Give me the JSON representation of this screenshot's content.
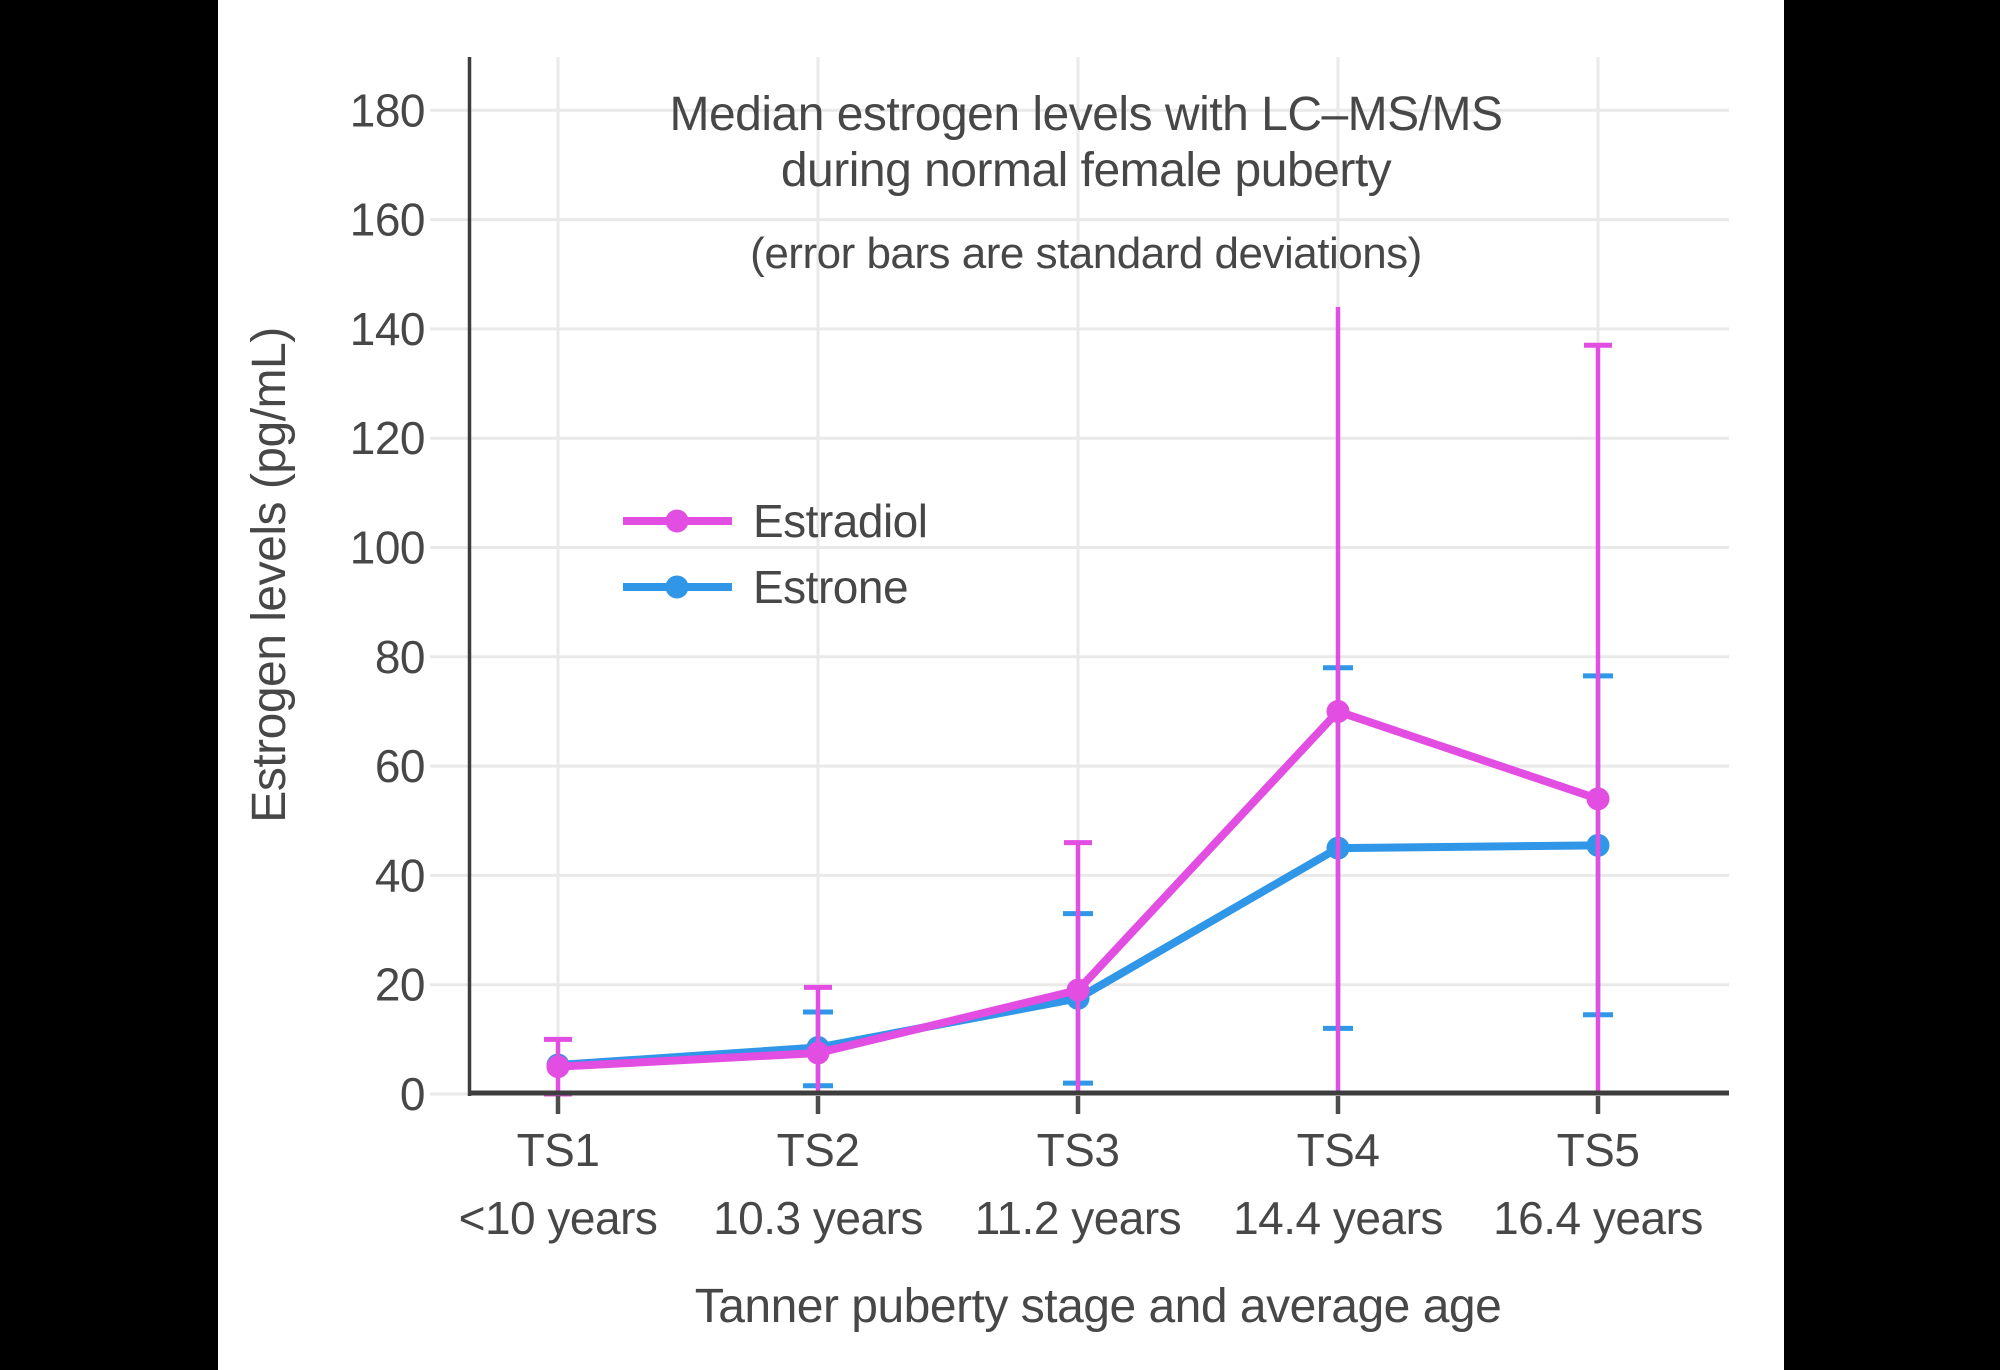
{
  "colors": {
    "background": "#ffffff",
    "letterbox": "#000000",
    "text": "#474747",
    "axis_line": "#3d3d3d",
    "x_tick": "#4d4d4d",
    "gridline": "#e9e9e9",
    "estradiol": "#e24de2",
    "estrone": "#2f96e8"
  },
  "title": {
    "line1": "Median estrogen levels with LC–MS/MS",
    "line2": "during normal female puberty",
    "subtitle": "(error bars are standard deviations)"
  },
  "legend": {
    "items": [
      {
        "label": "Estradiol",
        "color": "#e24de2"
      },
      {
        "label": "Estrone",
        "color": "#2f96e8"
      }
    ]
  },
  "axes": {
    "y": {
      "title": "Estrogen levels (pg/mL)",
      "tick_values": [
        0,
        20,
        40,
        60,
        80,
        100,
        120,
        140,
        160,
        180
      ]
    },
    "x": {
      "title": "Tanner puberty stage and average age"
    }
  },
  "chart_data": {
    "type": "line",
    "title": "Median estrogen levels with LC–MS/MS during normal female puberty",
    "subtitle": "(error bars are standard deviations)",
    "xlabel": "Tanner puberty stage and average age",
    "ylabel": "Estrogen levels (pg/mL)",
    "ylim": [
      0,
      190
    ],
    "grid": true,
    "legend_position": "inside-left-middle",
    "categories": [
      "TS1",
      "TS2",
      "TS3",
      "TS4",
      "TS5"
    ],
    "category_ages": [
      "<10 years",
      "10.3 years",
      "11.2 years",
      "14.4 years",
      "16.4 years"
    ],
    "series": [
      {
        "name": "Estrone",
        "color": "#2f96e8",
        "values": [
          5.3,
          8.5,
          17.5,
          45,
          45.5
        ],
        "error_low": [
          null,
          1.5,
          2,
          12,
          14.5
        ],
        "error_high": [
          null,
          15,
          33,
          78,
          76.5
        ],
        "cap_low": [
          false,
          true,
          true,
          true,
          true
        ],
        "cap_high": [
          false,
          true,
          true,
          true,
          true
        ],
        "cap_halfwidth": 15
      },
      {
        "name": "Estradiol",
        "color": "#e24de2",
        "values": [
          5,
          7.5,
          19,
          70,
          54
        ],
        "error_low": [
          0,
          0,
          0,
          0,
          0
        ],
        "error_high": [
          10,
          19.5,
          46,
          144,
          137
        ],
        "cap_low": [
          true,
          false,
          false,
          false,
          false
        ],
        "cap_high": [
          true,
          true,
          true,
          false,
          true
        ],
        "cap_halfwidth": 14
      }
    ]
  }
}
